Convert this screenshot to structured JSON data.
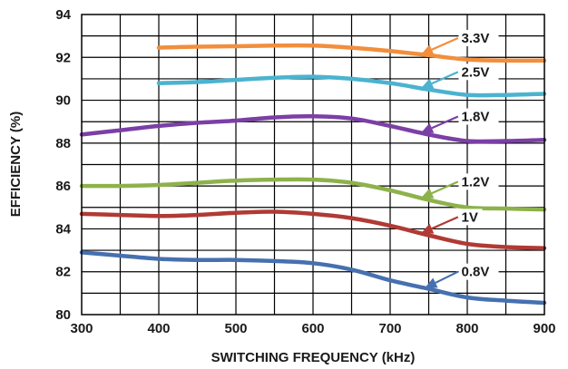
{
  "chart_data": {
    "type": "line",
    "title": "",
    "xlabel": "SWITCHING FREQUENCY (kHz)",
    "ylabel": "EFFICIENCY (%)",
    "xlim": [
      300,
      900
    ],
    "ylim": [
      80,
      94
    ],
    "xticks": [
      "300",
      "400",
      "500",
      "600",
      "700",
      "800",
      "900"
    ],
    "yticks": [
      "80",
      "82",
      "84",
      "86",
      "88",
      "90",
      "92",
      "94"
    ],
    "grid": true,
    "legend": "inline labels with arrows, right side",
    "series": [
      {
        "name": "3.3V",
        "color": "#F28E3C",
        "x": [
          400,
          450,
          500,
          550,
          600,
          650,
          700,
          750,
          800,
          850,
          900
        ],
        "y": [
          92.45,
          92.5,
          92.52,
          92.55,
          92.55,
          92.45,
          92.3,
          92.1,
          91.9,
          91.85,
          91.85
        ],
        "arrow_x": 740
      },
      {
        "name": "2.5V",
        "color": "#4BB3CF",
        "x": [
          400,
          450,
          500,
          550,
          600,
          650,
          700,
          750,
          800,
          850,
          900
        ],
        "y": [
          90.8,
          90.85,
          90.95,
          91.05,
          91.1,
          91.0,
          90.8,
          90.5,
          90.25,
          90.25,
          90.3
        ],
        "arrow_x": 740
      },
      {
        "name": "1.8V",
        "color": "#7B3FA6",
        "x": [
          300,
          350,
          400,
          450,
          500,
          550,
          600,
          650,
          700,
          750,
          800,
          850,
          900
        ],
        "y": [
          88.4,
          88.6,
          88.8,
          88.95,
          89.05,
          89.2,
          89.25,
          89.15,
          88.8,
          88.4,
          88.1,
          88.1,
          88.15
        ],
        "arrow_x": 740
      },
      {
        "name": "1.2V",
        "color": "#8DB24B",
        "x": [
          300,
          350,
          400,
          450,
          500,
          550,
          600,
          650,
          700,
          750,
          800,
          850,
          900
        ],
        "y": [
          86.0,
          86.0,
          86.05,
          86.15,
          86.25,
          86.3,
          86.3,
          86.15,
          85.8,
          85.35,
          85.0,
          84.95,
          84.9
        ],
        "arrow_x": 740
      },
      {
        "name": "1V",
        "color": "#B03A34",
        "x": [
          300,
          350,
          400,
          450,
          500,
          550,
          600,
          650,
          700,
          750,
          800,
          850,
          900
        ],
        "y": [
          84.7,
          84.65,
          84.6,
          84.65,
          84.75,
          84.8,
          84.7,
          84.5,
          84.15,
          83.7,
          83.3,
          83.15,
          83.1
        ],
        "arrow_x": 740
      },
      {
        "name": "0.8V",
        "color": "#4670B0",
        "x": [
          300,
          350,
          400,
          450,
          500,
          550,
          600,
          650,
          700,
          750,
          800,
          850,
          900
        ],
        "y": [
          82.9,
          82.75,
          82.6,
          82.55,
          82.55,
          82.5,
          82.4,
          82.1,
          81.6,
          81.2,
          80.8,
          80.65,
          80.55
        ],
        "arrow_x": 745
      }
    ]
  }
}
